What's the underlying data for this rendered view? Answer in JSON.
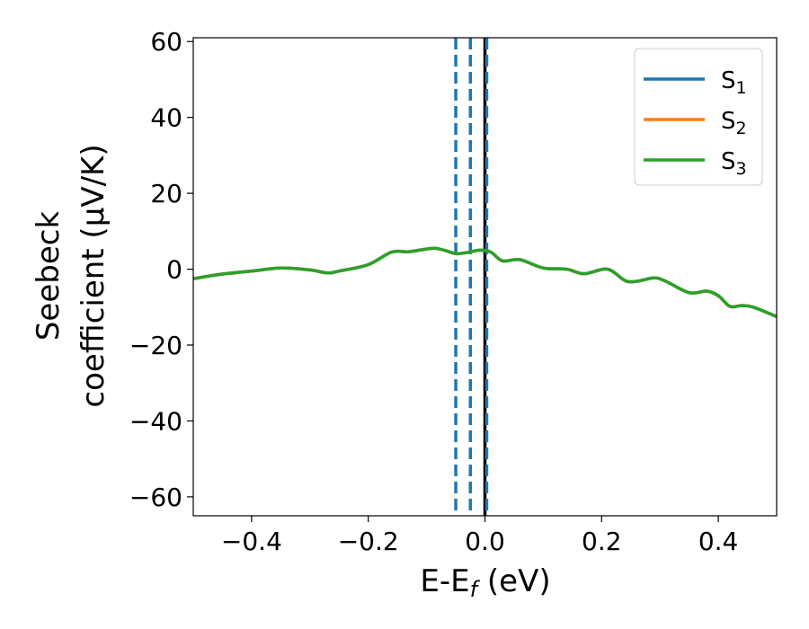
{
  "chart_data": {
    "type": "line",
    "xlabel": {
      "main": "E-E",
      "sub": "f",
      "suffix": " (eV)"
    },
    "ylabel": {
      "line1": "Seebeck",
      "line2": "coefficient  (μV/K)"
    },
    "xlim": [
      -0.5,
      0.5
    ],
    "ylim": [
      -65,
      61
    ],
    "xticks": [
      -0.4,
      -0.2,
      0.0,
      0.2,
      0.4
    ],
    "xtick_labels": [
      "−0.4",
      "−0.2",
      "0.0",
      "0.2",
      "0.4"
    ],
    "yticks": [
      -60,
      -40,
      -20,
      0,
      20,
      40,
      60
    ],
    "ytick_labels": [
      "−60",
      "−40",
      "−20",
      "0",
      "20",
      "40",
      "60"
    ],
    "grid": false,
    "legend_position": "top-right",
    "series": [
      {
        "name": "S",
        "sub": "1",
        "color": "#1f77b4",
        "x": [
          -0.5,
          -0.45,
          -0.4,
          -0.35,
          -0.3,
          -0.27,
          -0.25,
          -0.2,
          -0.16,
          -0.13,
          -0.09,
          -0.07,
          -0.05,
          -0.03,
          -0.01,
          0.01,
          0.03,
          0.06,
          0.1,
          0.14,
          0.17,
          0.21,
          0.24,
          0.26,
          0.29,
          0.31,
          0.35,
          0.38,
          0.4,
          0.42,
          0.44,
          0.46,
          0.5
        ],
        "y": [
          -2.5,
          -1.3,
          -0.5,
          0.3,
          -0.2,
          -1.0,
          -0.5,
          1.2,
          4.5,
          4.6,
          5.5,
          5.0,
          4.1,
          4.4,
          5.0,
          4.5,
          2.2,
          2.5,
          0.3,
          0.0,
          -1.2,
          0.0,
          -3.0,
          -3.2,
          -2.3,
          -3.2,
          -6.2,
          -5.8,
          -7.0,
          -9.8,
          -9.6,
          -10.0,
          -12.5
        ]
      },
      {
        "name": "S",
        "sub": "2",
        "color": "#ff7f0e",
        "x": [
          -0.5,
          -0.45,
          -0.4,
          -0.35,
          -0.3,
          -0.27,
          -0.25,
          -0.2,
          -0.16,
          -0.13,
          -0.09,
          -0.07,
          -0.05,
          -0.03,
          -0.01,
          0.01,
          0.03,
          0.06,
          0.1,
          0.14,
          0.17,
          0.21,
          0.24,
          0.26,
          0.29,
          0.31,
          0.35,
          0.38,
          0.4,
          0.42,
          0.44,
          0.46,
          0.5
        ],
        "y": [
          -2.5,
          -1.3,
          -0.5,
          0.3,
          -0.2,
          -1.0,
          -0.5,
          1.2,
          4.5,
          4.6,
          5.5,
          5.0,
          4.1,
          4.4,
          5.0,
          4.5,
          2.2,
          2.5,
          0.3,
          0.0,
          -1.2,
          0.0,
          -3.0,
          -3.2,
          -2.3,
          -3.2,
          -6.2,
          -5.8,
          -7.0,
          -9.8,
          -9.6,
          -10.0,
          -12.5
        ]
      },
      {
        "name": "S",
        "sub": "3",
        "color": "#2ca02c",
        "x": [
          -0.5,
          -0.45,
          -0.4,
          -0.35,
          -0.3,
          -0.27,
          -0.25,
          -0.2,
          -0.16,
          -0.13,
          -0.09,
          -0.07,
          -0.05,
          -0.03,
          -0.01,
          0.01,
          0.03,
          0.06,
          0.1,
          0.14,
          0.17,
          0.21,
          0.24,
          0.26,
          0.29,
          0.31,
          0.35,
          0.38,
          0.4,
          0.42,
          0.44,
          0.46,
          0.5
        ],
        "y": [
          -2.5,
          -1.3,
          -0.5,
          0.3,
          -0.2,
          -1.0,
          -0.5,
          1.2,
          4.5,
          4.6,
          5.5,
          5.0,
          4.1,
          4.4,
          5.0,
          4.5,
          2.2,
          2.5,
          0.3,
          0.0,
          -1.2,
          0.0,
          -3.0,
          -3.2,
          -2.3,
          -3.2,
          -6.2,
          -5.8,
          -7.0,
          -9.8,
          -9.6,
          -10.0,
          -12.5
        ]
      }
    ],
    "vlines": [
      {
        "x": -0.05,
        "color": "#1f77b4",
        "style": "dashed"
      },
      {
        "x": -0.025,
        "color": "#1f77b4",
        "style": "dashed"
      },
      {
        "x": 0.0,
        "color": "#000000",
        "style": "solid"
      },
      {
        "x": 0.003,
        "color": "#1f77b4",
        "style": "dashed"
      }
    ]
  }
}
